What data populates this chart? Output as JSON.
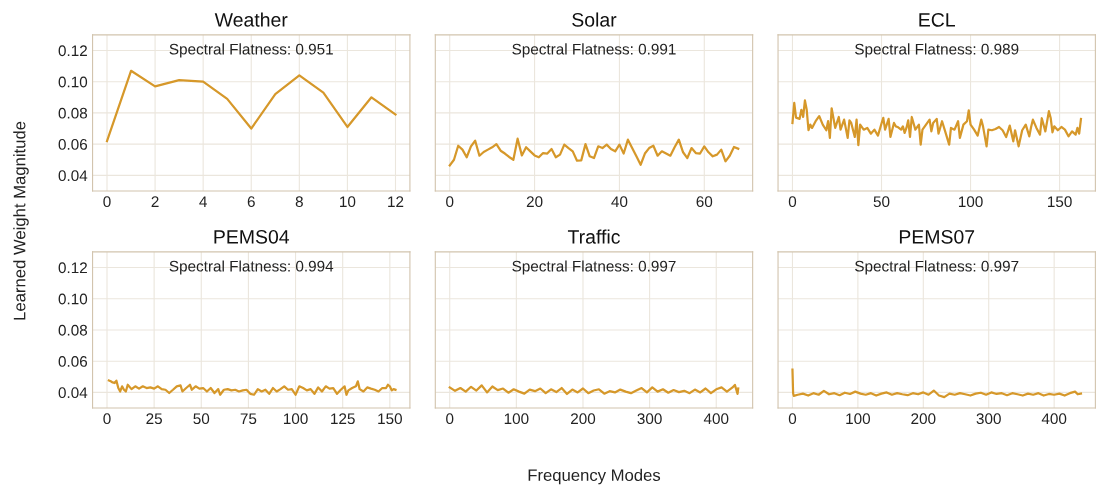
{
  "chart_data": [
    {
      "type": "line",
      "title": "Weather",
      "ylabel": "Learned Weight Magnitude",
      "annotations": [
        "Spectral Flatness: 0.951"
      ],
      "grid": true,
      "xlim": [
        -0.6,
        12.6
      ],
      "xticks": [
        0,
        2,
        4,
        6,
        8,
        10,
        12
      ],
      "ylim": [
        0.03,
        0.13
      ],
      "yticks": [
        0.04,
        0.06,
        0.08,
        {
          "value": 0.1,
          "label": "0.10"
        },
        0.12
      ],
      "x": [
        0,
        1,
        2,
        3,
        4,
        5,
        6,
        7,
        8,
        9,
        10,
        11,
        12
      ],
      "series": [
        {
          "color": "#d6982a",
          "values": [
            0.062,
            0.107,
            0.097,
            0.101,
            0.1,
            0.089,
            0.07,
            0.092,
            0.104,
            0.093,
            0.071,
            0.09,
            0.079
          ]
        }
      ]
    },
    {
      "type": "line",
      "title": "Solar",
      "annotations": [
        "Spectral Flatness: 0.991"
      ],
      "grid": true,
      "tick_labels": "x",
      "xlim": [
        -3.4,
        71.4
      ],
      "xticks": [
        0,
        20,
        40,
        60
      ],
      "ylim": [
        0.03,
        0.13
      ],
      "yticks": [
        0.04,
        0.06,
        0.08,
        0.1,
        0.12
      ],
      "x": [
        0,
        1,
        2,
        3,
        4,
        5,
        6,
        7,
        8,
        9,
        10,
        11,
        12,
        13,
        14,
        15,
        16,
        17,
        18,
        19,
        20,
        21,
        22,
        23,
        24,
        25,
        26,
        27,
        28,
        29,
        30,
        31,
        32,
        33,
        34,
        35,
        36,
        37,
        38,
        39,
        40,
        41,
        42,
        43,
        44,
        45,
        46,
        47,
        48,
        49,
        50,
        51,
        52,
        53,
        54,
        55,
        56,
        57,
        58,
        59,
        60,
        61,
        62,
        63,
        64,
        65,
        66,
        67,
        68
      ],
      "series": [
        {
          "color": "#d6982a",
          "values": [
            0.0464,
            0.05,
            0.059,
            0.0565,
            0.0516,
            0.0586,
            0.0622,
            0.0526,
            0.055,
            0.0565,
            0.058,
            0.06,
            0.0558,
            0.054,
            0.0518,
            0.05,
            0.0635,
            0.0528,
            0.058,
            0.0554,
            0.0528,
            0.0516,
            0.0543,
            0.054,
            0.0569,
            0.0516,
            0.0533,
            0.0597,
            0.0575,
            0.0554,
            0.0494,
            0.0496,
            0.06,
            0.0522,
            0.0511,
            0.0586,
            0.0575,
            0.0597,
            0.0569,
            0.0554,
            0.0597,
            0.054,
            0.0629,
            0.0575,
            0.0522,
            0.0468,
            0.054,
            0.0575,
            0.059,
            0.0526,
            0.0554,
            0.054,
            0.0526,
            0.058,
            0.0629,
            0.0548,
            0.0511,
            0.0575,
            0.0543,
            0.054,
            0.0586,
            0.0548,
            0.0522,
            0.0533,
            0.0565,
            0.049,
            0.0526,
            0.0582,
            0.0571
          ]
        }
      ]
    },
    {
      "type": "line",
      "title": "ECL",
      "annotations": [
        "Spectral Flatness: 0.989"
      ],
      "grid": true,
      "tick_labels": "x",
      "xlim": [
        -8.1,
        170.1
      ],
      "xticks": [
        0,
        50,
        100,
        150
      ],
      "ylim": [
        0.03,
        0.13
      ],
      "yticks": [
        0.04,
        0.06,
        0.08,
        0.1,
        0.12
      ],
      "x": [
        0,
        1,
        2,
        4,
        5,
        6,
        7,
        8,
        9,
        10,
        11,
        13,
        15,
        17,
        19,
        20,
        21,
        22,
        24,
        26,
        27,
        29,
        31,
        32,
        33,
        35,
        36,
        37,
        38,
        40,
        42,
        44,
        46,
        48,
        50,
        51,
        52,
        54,
        55,
        57,
        58,
        59,
        61,
        62,
        63,
        64,
        65,
        66,
        67,
        69,
        71,
        72,
        73,
        75,
        77,
        78,
        79,
        81,
        82,
        84,
        86,
        88,
        89,
        91,
        93,
        94,
        96,
        98,
        99,
        100,
        102,
        104,
        106,
        107,
        109,
        110,
        112,
        114,
        116,
        118,
        120,
        122,
        124,
        125,
        127,
        129,
        131,
        133,
        134,
        135,
        137,
        139,
        140,
        142,
        144,
        145,
        146,
        147,
        149,
        151,
        153,
        155,
        157,
        159,
        160,
        161,
        162
      ],
      "series": [
        {
          "color": "#d6982a",
          "values": [
            0.0736,
            0.0864,
            0.077,
            0.0762,
            0.082,
            0.0774,
            0.088,
            0.082,
            0.0689,
            0.0725,
            0.0704,
            0.0747,
            0.078,
            0.0725,
            0.0689,
            0.0747,
            0.064,
            0.083,
            0.0704,
            0.0774,
            0.0693,
            0.0757,
            0.064,
            0.0753,
            0.0736,
            0.0646,
            0.0757,
            0.0593,
            0.0725,
            0.0693,
            0.0704,
            0.0667,
            0.0693,
            0.0655,
            0.0732,
            0.0768,
            0.0693,
            0.0762,
            0.0646,
            0.0736,
            0.0714,
            0.071,
            0.0693,
            0.0714,
            0.0672,
            0.0704,
            0.0753,
            0.0646,
            0.0774,
            0.0693,
            0.0725,
            0.0597,
            0.0693,
            0.0725,
            0.0757,
            0.0682,
            0.0736,
            0.0762,
            0.0667,
            0.0747,
            0.0672,
            0.0597,
            0.0704,
            0.0693,
            0.0747,
            0.064,
            0.0725,
            0.0747,
            0.0817,
            0.0725,
            0.0693,
            0.0655,
            0.0757,
            0.0714,
            0.0586,
            0.0693,
            0.0689,
            0.0697,
            0.071,
            0.0689,
            0.0646,
            0.0719,
            0.0618,
            0.0689,
            0.0586,
            0.0689,
            0.0725,
            0.065,
            0.071,
            0.0757,
            0.0704,
            0.0661,
            0.0766,
            0.0682,
            0.0811,
            0.0768,
            0.0676,
            0.0714,
            0.0689,
            0.071,
            0.0693,
            0.065,
            0.0682,
            0.0661,
            0.0704,
            0.0667,
            0.0762
          ]
        }
      ]
    },
    {
      "type": "line",
      "title": "PEMS04",
      "annotations": [
        "Spectral Flatness: 0.994"
      ],
      "grid": true,
      "xlim": [
        -7.65,
        160.65
      ],
      "xticks": [
        0,
        25,
        50,
        75,
        100,
        125,
        150
      ],
      "ylim": [
        0.03,
        0.13
      ],
      "yticks": [
        0.04,
        0.06,
        0.08,
        {
          "value": 0.1,
          "label": "0.10"
        },
        0.12
      ],
      "x": [
        1,
        2,
        3,
        4,
        5,
        6,
        7,
        8,
        9,
        10,
        11,
        13,
        15,
        17,
        19,
        21,
        23,
        25,
        27,
        29,
        31,
        33,
        35,
        37,
        39,
        40,
        42,
        44,
        45,
        47,
        49,
        51,
        53,
        55,
        57,
        59,
        60,
        62,
        64,
        66,
        68,
        70,
        72,
        74,
        76,
        78,
        80,
        82,
        84,
        86,
        88,
        90,
        92,
        94,
        96,
        98,
        100,
        102,
        104,
        106,
        108,
        110,
        112,
        114,
        116,
        118,
        120,
        122,
        124,
        126,
        127,
        128,
        130,
        132,
        133,
        134,
        136,
        138,
        140,
        142,
        144,
        146,
        148,
        149,
        150,
        151,
        152,
        153
      ],
      "series": [
        {
          "color": "#d6982a",
          "values": [
            0.0477,
            0.0471,
            0.0464,
            0.046,
            0.0475,
            0.0428,
            0.0406,
            0.0439,
            0.0417,
            0.0406,
            0.0449,
            0.0421,
            0.0439,
            0.0424,
            0.0439,
            0.0428,
            0.0432,
            0.0424,
            0.0439,
            0.0421,
            0.0417,
            0.0396,
            0.0417,
            0.0439,
            0.0445,
            0.0406,
            0.0428,
            0.0449,
            0.0417,
            0.0439,
            0.0424,
            0.0428,
            0.0406,
            0.0428,
            0.0396,
            0.0421,
            0.0385,
            0.0417,
            0.0421,
            0.0413,
            0.0417,
            0.0406,
            0.0413,
            0.0417,
            0.0391,
            0.0385,
            0.0421,
            0.0406,
            0.0417,
            0.0391,
            0.0428,
            0.0406,
            0.0421,
            0.0439,
            0.0417,
            0.0421,
            0.0385,
            0.0439,
            0.0428,
            0.0413,
            0.0421,
            0.0391,
            0.0432,
            0.0406,
            0.0439,
            0.0424,
            0.0428,
            0.0391,
            0.0417,
            0.0439,
            0.0385,
            0.0413,
            0.0428,
            0.0439,
            0.0471,
            0.0421,
            0.0406,
            0.0432,
            0.0424,
            0.0417,
            0.0406,
            0.0428,
            0.0428,
            0.0449,
            0.0439,
            0.0413,
            0.0421,
            0.0417
          ]
        }
      ]
    },
    {
      "type": "line",
      "title": "Traffic",
      "xlabel": "Frequency Modes",
      "annotations": [
        "Spectral Flatness: 0.997"
      ],
      "grid": true,
      "tick_labels": "x",
      "xlim": [
        -21.65,
        454.65
      ],
      "xticks": [
        0,
        100,
        200,
        300,
        400
      ],
      "ylim": [
        0.03,
        0.13
      ],
      "yticks": [
        0.04,
        0.06,
        0.08,
        0.1,
        0.12
      ],
      "x": [
        0,
        8,
        16,
        24,
        32,
        40,
        48,
        56,
        64,
        72,
        80,
        88,
        96,
        104,
        112,
        120,
        128,
        136,
        144,
        152,
        160,
        168,
        176,
        184,
        192,
        200,
        208,
        216,
        224,
        232,
        240,
        248,
        256,
        264,
        272,
        280,
        288,
        296,
        304,
        312,
        320,
        328,
        336,
        344,
        352,
        360,
        368,
        376,
        384,
        392,
        400,
        408,
        416,
        424,
        428,
        432,
        433
      ],
      "series": [
        {
          "color": "#d6982a",
          "values": [
            0.0432,
            0.041,
            0.0428,
            0.0405,
            0.0436,
            0.0412,
            0.0445,
            0.04,
            0.0438,
            0.0415,
            0.0425,
            0.0398,
            0.042,
            0.0405,
            0.0392,
            0.0418,
            0.0408,
            0.0425,
            0.0395,
            0.042,
            0.0402,
            0.0428,
            0.039,
            0.0418,
            0.04,
            0.0425,
            0.0395,
            0.0412,
            0.042,
            0.0392,
            0.0408,
            0.04,
            0.0418,
            0.0405,
            0.0395,
            0.0412,
            0.0428,
            0.04,
            0.0432,
            0.0405,
            0.042,
            0.0398,
            0.0415,
            0.0402,
            0.041,
            0.0395,
            0.0418,
            0.04,
            0.0425,
            0.0395,
            0.042,
            0.0432,
            0.0405,
            0.043,
            0.0448,
            0.039,
            0.0425
          ]
        }
      ]
    },
    {
      "type": "line",
      "title": "PEMS07",
      "annotations": [
        "Spectral Flatness: 0.997"
      ],
      "grid": true,
      "tick_labels": "x",
      "xlim": [
        -22.05,
        463.05
      ],
      "xticks": [
        0,
        100,
        200,
        300,
        400
      ],
      "ylim": [
        0.03,
        0.13
      ],
      "yticks": [
        0.04,
        0.06,
        0.08,
        0.1,
        0.12
      ],
      "x": [
        0,
        1,
        2,
        8,
        16,
        24,
        32,
        40,
        48,
        56,
        64,
        72,
        80,
        88,
        96,
        104,
        112,
        120,
        128,
        136,
        144,
        152,
        160,
        168,
        176,
        184,
        192,
        200,
        208,
        216,
        224,
        232,
        240,
        248,
        256,
        264,
        272,
        280,
        288,
        296,
        304,
        312,
        320,
        328,
        336,
        344,
        352,
        360,
        368,
        376,
        384,
        392,
        400,
        408,
        416,
        424,
        432,
        436,
        441
      ],
      "series": [
        {
          "color": "#d6982a",
          "values": [
            0.0546,
            0.0395,
            0.0378,
            0.0385,
            0.0392,
            0.038,
            0.0395,
            0.0385,
            0.041,
            0.0388,
            0.0395,
            0.0382,
            0.0398,
            0.039,
            0.0405,
            0.0392,
            0.0385,
            0.0395,
            0.038,
            0.0392,
            0.04,
            0.0385,
            0.0395,
            0.0388,
            0.0382,
            0.0395,
            0.0388,
            0.04,
            0.0385,
            0.0412,
            0.038,
            0.037,
            0.0392,
            0.0385,
            0.0395,
            0.0388,
            0.038,
            0.0392,
            0.0398,
            0.0385,
            0.04,
            0.039,
            0.0395,
            0.0382,
            0.0395,
            0.0388,
            0.038,
            0.0392,
            0.0385,
            0.0395,
            0.038,
            0.039,
            0.0385,
            0.0392,
            0.038,
            0.0395,
            0.0405,
            0.0388,
            0.0392
          ]
        }
      ]
    }
  ]
}
